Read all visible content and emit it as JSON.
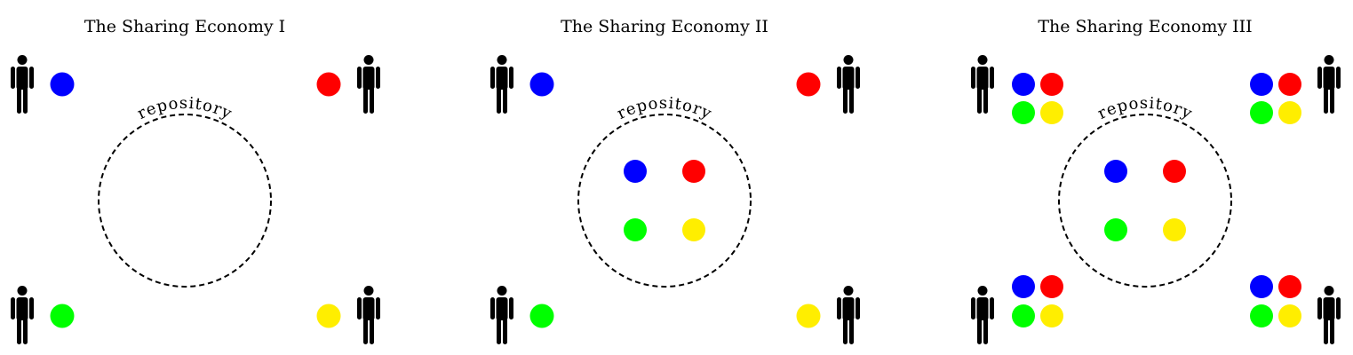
{
  "colors": {
    "blue": "#0000ff",
    "red": "#ff0000",
    "green": "#00ff00",
    "yellow": "#ffee00",
    "ink": "#000000"
  },
  "panels": [
    {
      "id": "p1",
      "title": "The Sharing Economy I",
      "repository_label": "repository",
      "repository_tokens": [],
      "people": [
        {
          "corner": "top-left",
          "tokens": [
            "blue"
          ]
        },
        {
          "corner": "top-right",
          "tokens": [
            "red"
          ]
        },
        {
          "corner": "bottom-left",
          "tokens": [
            "green"
          ]
        },
        {
          "corner": "bottom-right",
          "tokens": [
            "yellow"
          ]
        }
      ]
    },
    {
      "id": "p2",
      "title": "The Sharing Economy II",
      "repository_label": "repository",
      "repository_tokens": [
        "blue",
        "red",
        "green",
        "yellow"
      ],
      "people": [
        {
          "corner": "top-left",
          "tokens": [
            "blue"
          ]
        },
        {
          "corner": "top-right",
          "tokens": [
            "red"
          ]
        },
        {
          "corner": "bottom-left",
          "tokens": [
            "green"
          ]
        },
        {
          "corner": "bottom-right",
          "tokens": [
            "yellow"
          ]
        }
      ]
    },
    {
      "id": "p3",
      "title": "The Sharing Economy III",
      "repository_label": "repository",
      "repository_tokens": [
        "blue",
        "red",
        "green",
        "yellow"
      ],
      "people": [
        {
          "corner": "top-left",
          "tokens": [
            "blue",
            "red",
            "green",
            "yellow"
          ]
        },
        {
          "corner": "top-right",
          "tokens": [
            "blue",
            "red",
            "green",
            "yellow"
          ]
        },
        {
          "corner": "bottom-left",
          "tokens": [
            "blue",
            "red",
            "green",
            "yellow"
          ]
        },
        {
          "corner": "bottom-right",
          "tokens": [
            "blue",
            "red",
            "green",
            "yellow"
          ]
        }
      ]
    }
  ]
}
